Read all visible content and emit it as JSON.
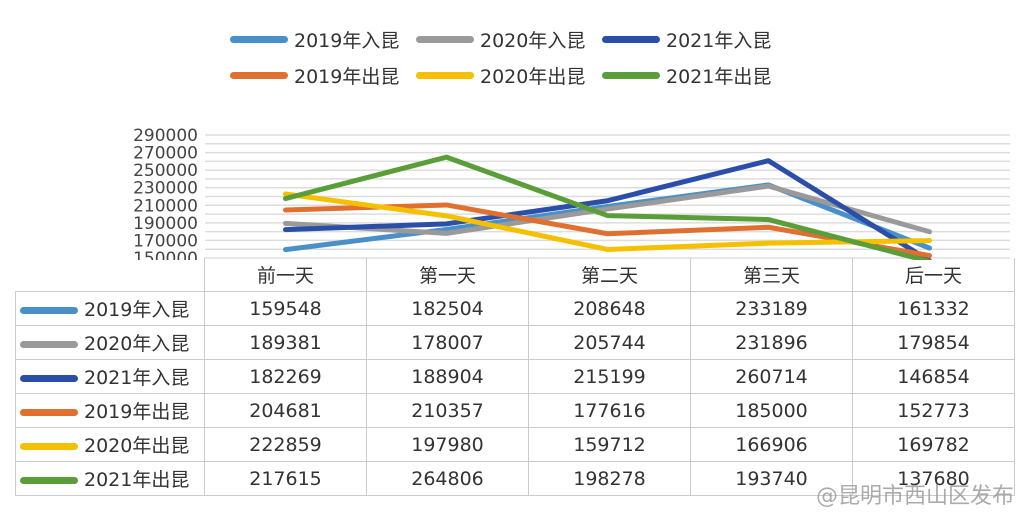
{
  "chart_data": {
    "type": "line",
    "categories": [
      "前一天",
      "第一天",
      "第二天",
      "第三天",
      "后一天"
    ],
    "ylim": [
      150000,
      290000
    ],
    "yticks": [
      "290000",
      "270000",
      "250000",
      "230000",
      "210000",
      "190000",
      "170000",
      "150000"
    ],
    "grid": true,
    "legend_position": "top",
    "series": [
      {
        "name": "2019年入昆",
        "color": "#4a90c8",
        "values": [
          159548,
          182504,
          208648,
          233189,
          161332
        ]
      },
      {
        "name": "2020年入昆",
        "color": "#9a9a9a",
        "values": [
          189381,
          178007,
          205744,
          231896,
          179854
        ]
      },
      {
        "name": "2021年入昆",
        "color": "#2b4fa8",
        "values": [
          182269,
          188904,
          215199,
          260714,
          146854
        ]
      },
      {
        "name": "2019年出昆",
        "color": "#e07030",
        "values": [
          204681,
          210357,
          177616,
          185000,
          152773
        ]
      },
      {
        "name": "2020年出昆",
        "color": "#f5c000",
        "values": [
          222859,
          197980,
          159712,
          166906,
          169782
        ]
      },
      {
        "name": "2021年出昆",
        "color": "#5a9e3a",
        "values": [
          217615,
          264806,
          198278,
          193740,
          137680
        ]
      }
    ]
  },
  "watermark": "@昆明市西山区发布"
}
